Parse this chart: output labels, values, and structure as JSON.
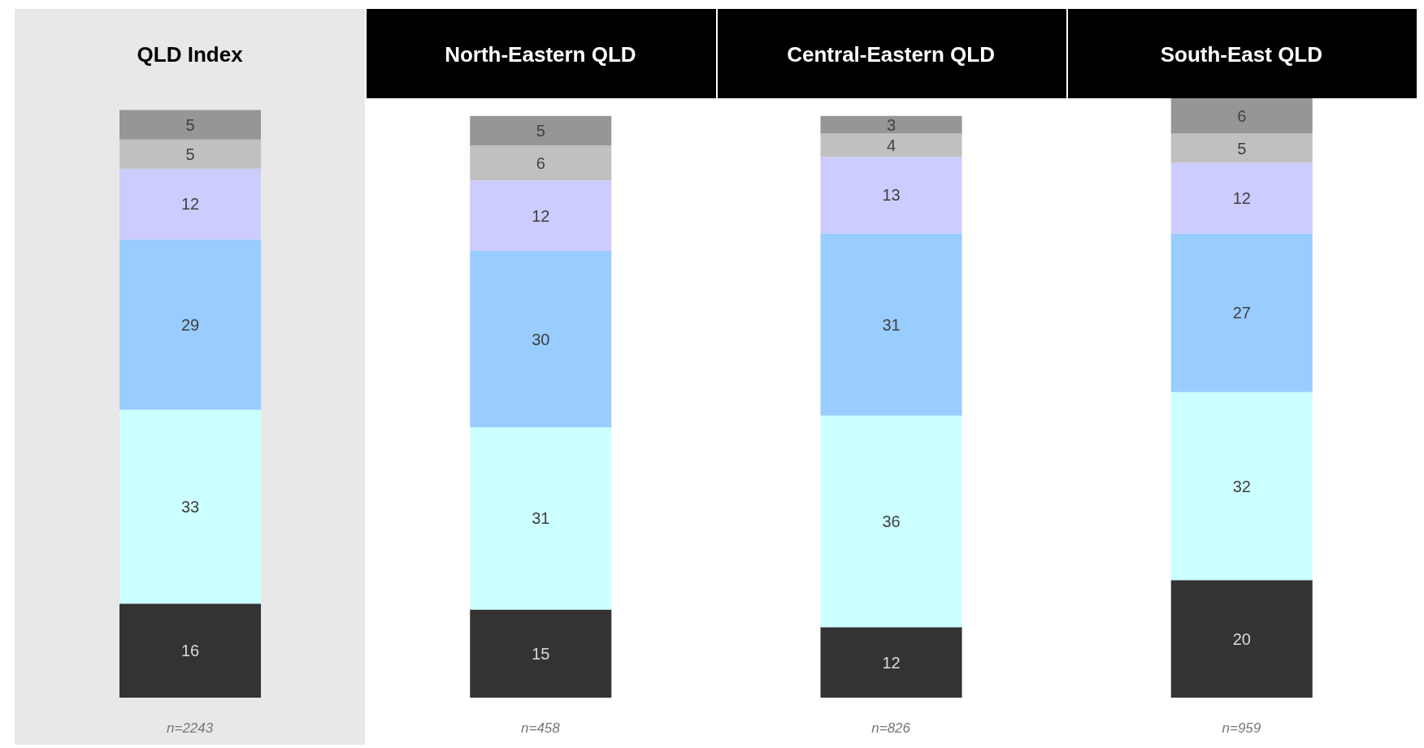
{
  "chart_data": {
    "type": "bar",
    "stacked": true,
    "data_labels": true,
    "tick_labels": "x",
    "categories": [
      "QLD Index",
      "North-Eastern QLD",
      "Central-Eastern QLD",
      "South-East QLD"
    ],
    "series": [
      {
        "color": "#333333",
        "values": [
          16,
          15,
          12,
          20
        ]
      },
      {
        "color": "#ccffff",
        "values": [
          33,
          31,
          36,
          32
        ]
      },
      {
        "color": "#99ccff",
        "values": [
          29,
          30,
          31,
          27
        ]
      },
      {
        "color": "#ccccff",
        "values": [
          12,
          12,
          13,
          12
        ]
      },
      {
        "color": "#c0c0c0",
        "values": [
          5,
          6,
          4,
          5
        ]
      },
      {
        "color": "#969696",
        "values": [
          5,
          5,
          3,
          6
        ]
      }
    ],
    "annotations": [
      "n=2243",
      "n=458",
      "n=826",
      "n=959"
    ]
  }
}
